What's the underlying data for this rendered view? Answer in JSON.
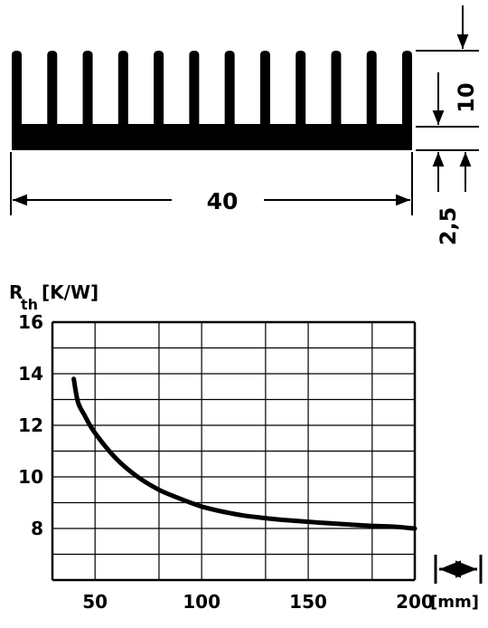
{
  "heatsink": {
    "width_label": "40",
    "fin_height_label": "10",
    "base_thickness_label": "2,5",
    "fin_count": 12
  },
  "chart_data": {
    "type": "line",
    "title": "",
    "ylabel_main": "R",
    "ylabel_sub": "th",
    "ylabel_unit": "[K/W]",
    "xlabel": "[mm]",
    "xlim": [
      30,
      200
    ],
    "ylim": [
      6,
      16
    ],
    "x_ticks": [
      50,
      100,
      150,
      200
    ],
    "y_ticks": [
      8,
      10,
      12,
      14,
      16
    ],
    "x_gridlines": [
      30,
      50,
      80,
      100,
      130,
      150,
      180,
      200
    ],
    "y_gridlines": [
      6,
      7,
      8,
      9,
      10,
      11,
      12,
      13,
      14,
      15,
      16
    ],
    "grid": true,
    "series": [
      {
        "x": [
          40,
          42,
          45,
          50,
          60,
          70,
          80,
          90,
          100,
          110,
          120,
          130,
          140,
          150,
          160,
          170,
          180,
          190,
          200
        ],
        "y": [
          13.8,
          12.9,
          12.4,
          11.7,
          10.7,
          10.0,
          9.5,
          9.15,
          8.85,
          8.65,
          8.5,
          8.4,
          8.32,
          8.26,
          8.2,
          8.15,
          8.1,
          8.07,
          8.0
        ]
      }
    ]
  }
}
